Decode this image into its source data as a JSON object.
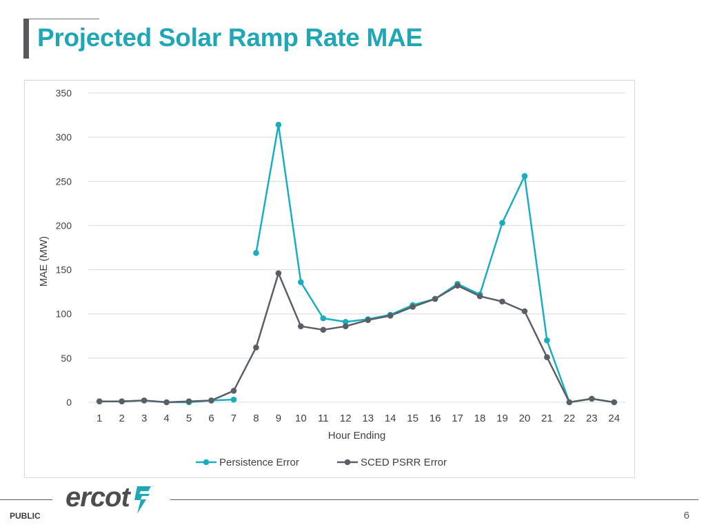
{
  "slide": {
    "title": "Projected Solar Ramp Rate MAE",
    "classification": "PUBLIC",
    "page_number": "6",
    "logo_text": "ercot"
  },
  "colors": {
    "title": "#1fa7b6",
    "persistence": "#19adc0",
    "sced": "#5a5f66",
    "grid": "#d9d9d9",
    "axis_text": "#404040"
  },
  "chart_data": {
    "type": "line",
    "title": "",
    "xlabel": "Hour Ending",
    "ylabel": "MAE (MW)",
    "ylim": [
      0,
      350
    ],
    "yticks": [
      0,
      50,
      100,
      150,
      200,
      250,
      300,
      350
    ],
    "grid": true,
    "legend_position": "bottom",
    "categories": [
      "1",
      "2",
      "3",
      "4",
      "5",
      "6",
      "7",
      "8",
      "9",
      "10",
      "11",
      "12",
      "13",
      "14",
      "15",
      "16",
      "17",
      "18",
      "19",
      "20",
      "21",
      "22",
      "23",
      "24"
    ],
    "series": [
      {
        "name": "Persistence Error",
        "color": "#19adc0",
        "segments": [
          {
            "start": 0,
            "values": [
              1,
              1,
              2,
              0,
              0,
              2,
              3
            ]
          },
          {
            "start": 7,
            "values": [
              169,
              314,
              136,
              95,
              91,
              94,
              99,
              110,
              117,
              134,
              122,
              203,
              256,
              70,
              0,
              4,
              0
            ]
          }
        ]
      },
      {
        "name": "SCED PSRR Error",
        "color": "#5a5f66",
        "segments": [
          {
            "start": 0,
            "values": [
              1,
              1,
              2,
              0,
              1,
              2,
              13,
              62,
              146,
              86,
              82,
              86,
              93,
              98,
              108,
              117,
              132,
              120,
              114,
              103,
              51,
              0,
              4,
              0
            ]
          }
        ]
      }
    ]
  }
}
